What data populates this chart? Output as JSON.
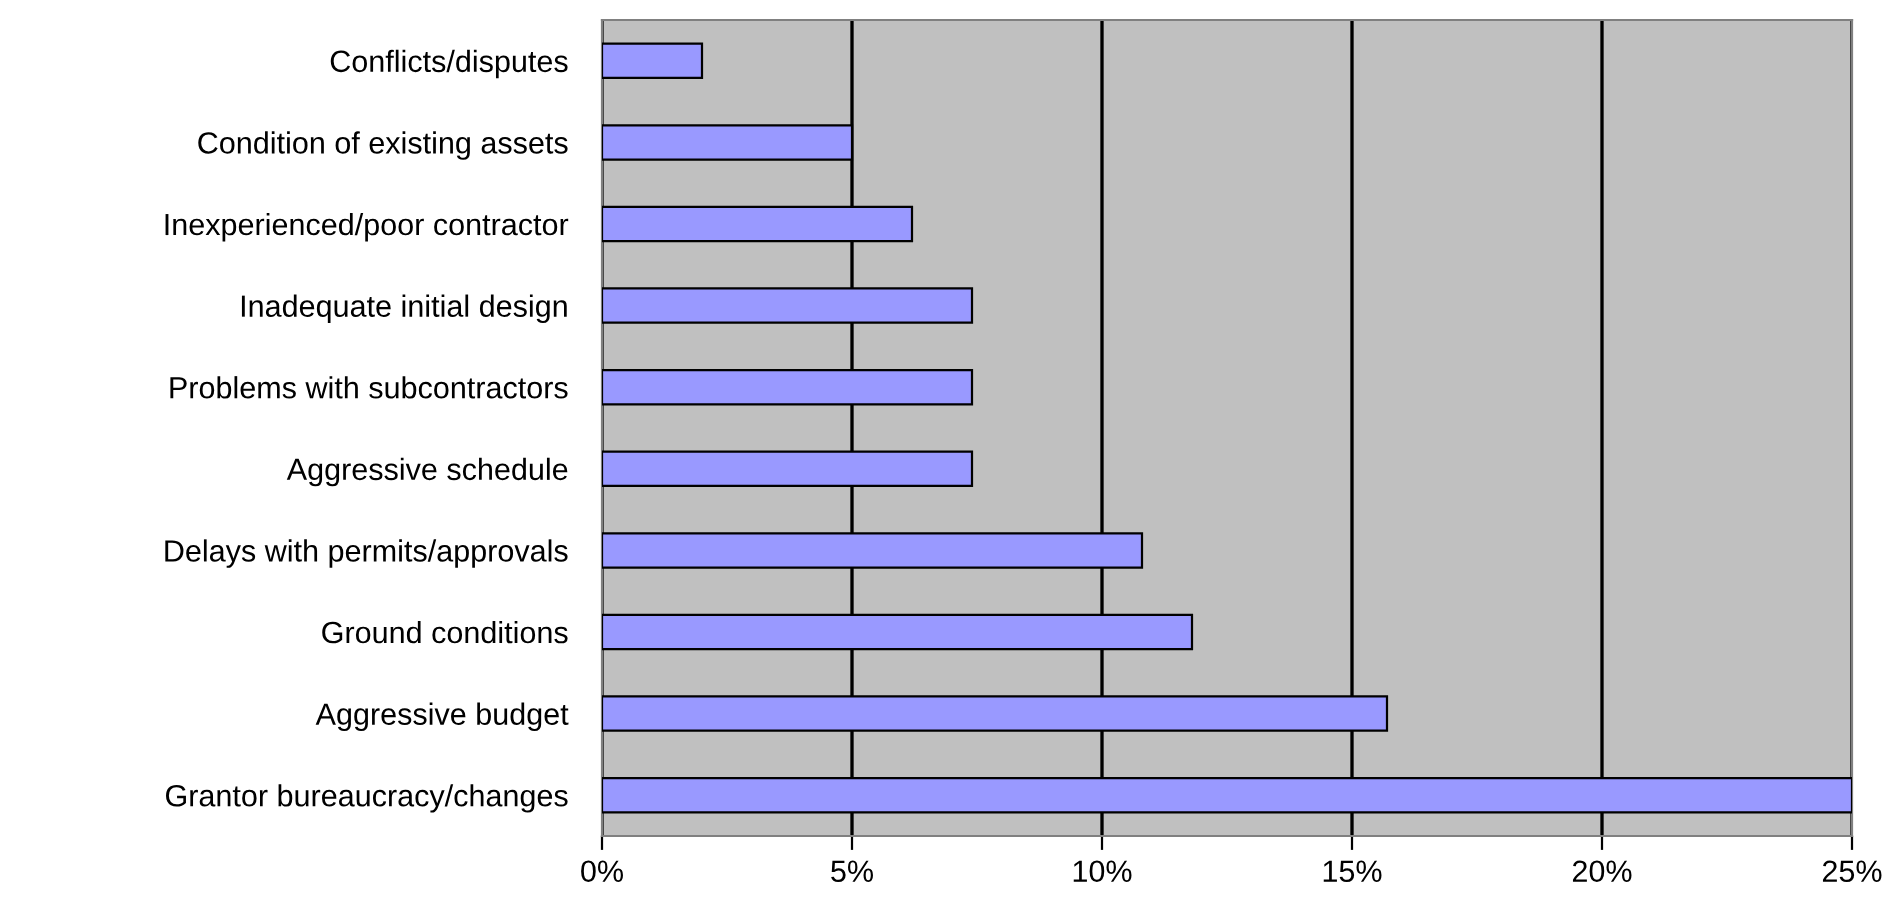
{
  "chart_data": {
    "type": "bar",
    "orientation": "horizontal",
    "categories": [
      "Conflicts/disputes",
      "Condition of existing assets",
      "Inexperienced/poor contractor",
      "Inadequate initial design",
      "Problems with subcontractors",
      "Aggressive schedule",
      "Delays with permits/approvals",
      "Ground conditions",
      "Aggressive budget",
      "Grantor bureaucracy/changes"
    ],
    "values": [
      2.0,
      5.0,
      6.2,
      7.4,
      7.4,
      7.4,
      10.8,
      11.8,
      15.7,
      25.0
    ],
    "color": "#9999ff",
    "xlim": [
      0,
      25
    ],
    "xticks": [
      {
        "value": 0,
        "label": "0%"
      },
      {
        "value": 5,
        "label": "5%"
      },
      {
        "value": 10,
        "label": "10%"
      },
      {
        "value": 15,
        "label": "15%"
      },
      {
        "value": 20,
        "label": "20%"
      },
      {
        "value": 25,
        "label": "25%"
      }
    ],
    "grid": "x"
  }
}
